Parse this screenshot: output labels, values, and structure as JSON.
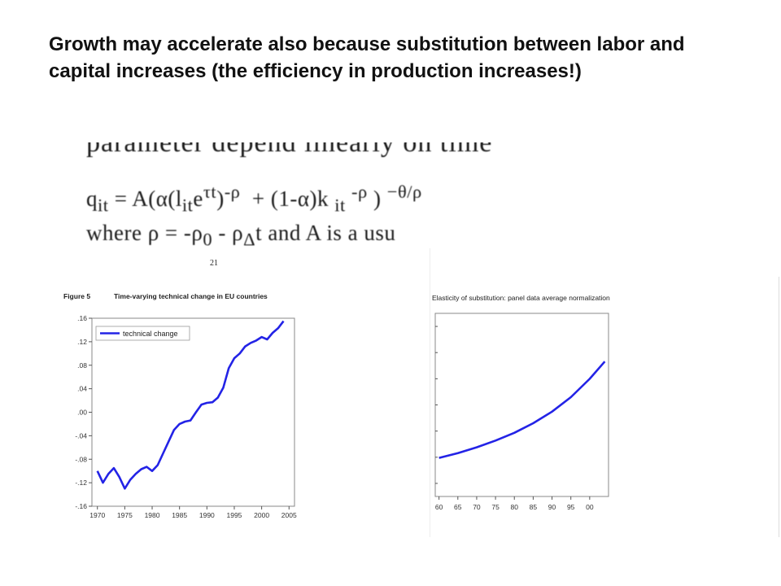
{
  "slide": {
    "title": "Growth may accelerate also because substitution between labor and capital increases (the efficiency in production increases!)"
  },
  "formula": {
    "top_line": "parameter depend linearly on time",
    "line1_html": "q<sub>it</sub> = A(α(l<sub>it</sub>e<sup>τt</sup>)<sup>-ρ</sup> &nbsp;+ (1-α)k <sub>it</sub> <sup>-ρ</sup> ) <sup>−θ/ρ</sup>",
    "line2_html": "where ρ = -ρ<sub>0</sub> - ρ<sub>Δ</sub>t and A is a usu"
  },
  "page_number": "21",
  "chart_data": [
    {
      "type": "line",
      "figure_label": "Figure 5",
      "title": "Time-varying technical change in EU countries",
      "x": [
        1970,
        1971,
        1972,
        1973,
        1974,
        1975,
        1976,
        1977,
        1978,
        1979,
        1980,
        1981,
        1982,
        1983,
        1984,
        1985,
        1986,
        1987,
        1988,
        1989,
        1990,
        1991,
        1992,
        1993,
        1994,
        1995,
        1996,
        1997,
        1998,
        1999,
        2000,
        2001,
        2002,
        2003,
        2004
      ],
      "series": [
        {
          "name": "technical change",
          "values": [
            -0.1,
            -0.12,
            -0.105,
            -0.095,
            -0.11,
            -0.13,
            -0.115,
            -0.105,
            -0.097,
            -0.093,
            -0.1,
            -0.09,
            -0.07,
            -0.05,
            -0.03,
            -0.02,
            -0.016,
            -0.014,
            0.0,
            0.013,
            0.016,
            0.017,
            0.025,
            0.042,
            0.075,
            0.092,
            0.1,
            0.112,
            0.118,
            0.122,
            0.128,
            0.124,
            0.135,
            0.143,
            0.155
          ]
        }
      ],
      "xlim": [
        1969,
        2006
      ],
      "ylim": [
        -0.16,
        0.16
      ],
      "yticks": [
        ".16",
        ".12",
        ".08",
        ".04",
        ".00",
        "-.04",
        "-.08",
        "-.12",
        "-.16"
      ],
      "ytick_values": [
        0.16,
        0.12,
        0.08,
        0.04,
        0.0,
        -0.04,
        -0.08,
        -0.12,
        -0.16
      ],
      "xticks": [
        "1970",
        "1975",
        "1980",
        "1985",
        "1990",
        "1995",
        "2000",
        "2005"
      ],
      "xtick_values": [
        1970,
        1975,
        1980,
        1985,
        1990,
        1995,
        2000,
        2005
      ],
      "legend_placement": "top-left",
      "color": "#2323e6"
    },
    {
      "type": "line",
      "title": "Elasticity of substitution: panel data average normalization",
      "x": [
        1960,
        1965,
        1970,
        1975,
        1980,
        1985,
        1990,
        1995,
        2000,
        2004
      ],
      "series": [
        {
          "values": [
            0.0,
            0.05,
            0.11,
            0.18,
            0.26,
            0.36,
            0.48,
            0.63,
            0.82,
            1.0
          ]
        }
      ],
      "xlim": [
        1959,
        2005
      ],
      "ylim": [
        -0.4,
        1.5
      ],
      "xticks": [
        "60",
        "65",
        "70",
        "75",
        "80",
        "85",
        "90",
        "95",
        "00"
      ],
      "xtick_values": [
        1960,
        1965,
        1970,
        1975,
        1980,
        1985,
        1990,
        1995,
        2000
      ],
      "color": "#2323e6"
    }
  ]
}
